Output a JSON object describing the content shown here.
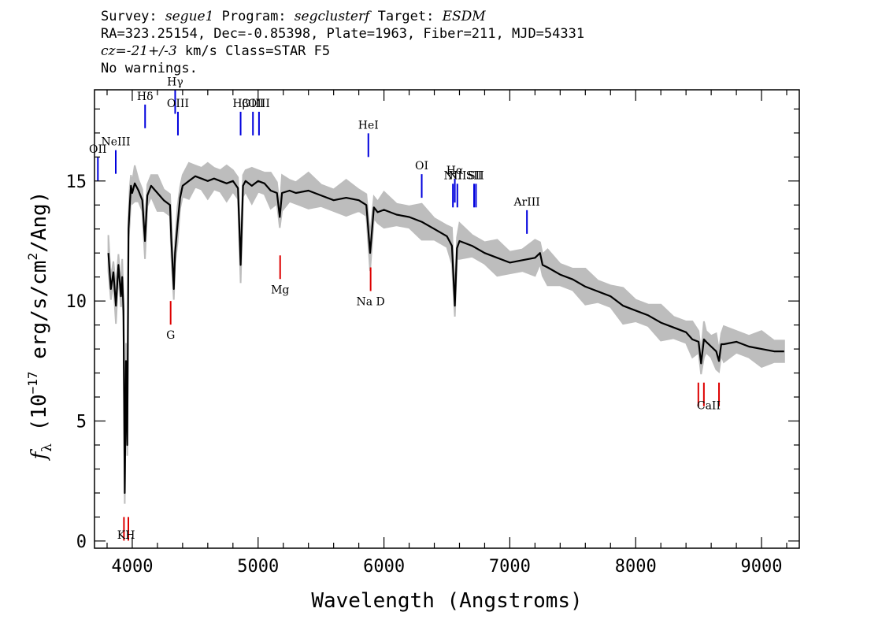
{
  "header": {
    "survey_label": "Survey:",
    "survey": "segue1",
    "program_label": "Program:",
    "program": "segclusterf",
    "target_label": "Target:",
    "target": "ESDM",
    "line2": "RA=323.25154, Dec=-0.85398, Plate=1963, Fiber=211, MJD=54331",
    "cz_label": "cz=",
    "cz_value": "-21+/-3",
    "cz_rest": " km/s Class=STAR F5",
    "warnings": "No warnings."
  },
  "chart_data": {
    "type": "line",
    "title": "",
    "xlabel": "Wavelength (Angstroms)",
    "ylabel": "f_λ (10^-17 erg/s/cm^2/Ang)",
    "ylabel_parts": {
      "f": "f",
      "sub": "λ",
      "pre": " (10",
      "exp": "−17",
      "mid": " erg/s/cm",
      "exp2": "2",
      "post": "/Ang)"
    },
    "xlim": [
      3700,
      9300
    ],
    "ylim": [
      -0.3,
      18.8
    ],
    "xticks": [
      4000,
      5000,
      6000,
      7000,
      8000,
      9000
    ],
    "yticks": [
      0,
      5,
      10,
      15
    ],
    "colors": {
      "spectrum": "#000000",
      "error_band": "#bdbdbd",
      "emission": "#0000dd",
      "absorption": "#dd0000"
    },
    "series": [
      {
        "x": [
          3810,
          3830,
          3850,
          3870,
          3890,
          3910,
          3920,
          3930,
          3940,
          3950,
          3960,
          3970,
          3980,
          3990,
          4000,
          4020,
          4050,
          4080,
          4101,
          4120,
          4150,
          4200,
          4250,
          4300,
          4310,
          4330,
          4340,
          4360,
          4380,
          4400,
          4450,
          4500,
          4550,
          4600,
          4650,
          4700,
          4750,
          4800,
          4840,
          4861,
          4880,
          4900,
          4950,
          5000,
          5050,
          5100,
          5150,
          5172,
          5190,
          5250,
          5300,
          5400,
          5500,
          5600,
          5700,
          5800,
          5860,
          5890,
          5920,
          5950,
          6000,
          6100,
          6200,
          6300,
          6400,
          6500,
          6540,
          6563,
          6580,
          6600,
          6700,
          6800,
          6900,
          7000,
          7100,
          7200,
          7240,
          7260,
          7300,
          7400,
          7500,
          7600,
          7700,
          7800,
          7900,
          8000,
          8100,
          8200,
          8300,
          8400,
          8450,
          8500,
          8520,
          8542,
          8560,
          8600,
          8640,
          8662,
          8680,
          8700,
          8800,
          8900,
          9000,
          9100,
          9180
        ],
        "y": [
          12.0,
          10.5,
          11.2,
          9.8,
          11.5,
          10.2,
          11.0,
          9.6,
          2.0,
          7.5,
          4.0,
          13.0,
          14.0,
          14.8,
          14.5,
          14.9,
          14.6,
          14.2,
          12.5,
          14.4,
          14.8,
          14.5,
          14.2,
          14.0,
          12.6,
          10.5,
          12.0,
          13.2,
          14.3,
          14.8,
          15.0,
          15.2,
          15.1,
          15.0,
          15.1,
          15.0,
          14.9,
          15.0,
          14.7,
          11.5,
          14.8,
          15.0,
          14.8,
          15.0,
          14.9,
          14.6,
          14.5,
          13.5,
          14.5,
          14.6,
          14.5,
          14.6,
          14.4,
          14.2,
          14.3,
          14.2,
          14.0,
          12.0,
          13.9,
          13.7,
          13.8,
          13.6,
          13.5,
          13.3,
          13.0,
          12.7,
          12.3,
          9.8,
          12.2,
          12.5,
          12.3,
          12.0,
          11.8,
          11.6,
          11.7,
          11.8,
          12.0,
          11.5,
          11.4,
          11.1,
          10.9,
          10.6,
          10.4,
          10.2,
          9.8,
          9.6,
          9.4,
          9.1,
          8.9,
          8.7,
          8.4,
          8.3,
          7.4,
          8.4,
          8.3,
          8.1,
          7.9,
          7.5,
          8.2,
          8.2,
          8.3,
          8.1,
          8.0,
          7.9,
          7.9
        ]
      }
    ],
    "emission_lines": [
      {
        "label": "OII",
        "x": 3727,
        "y": 15.0
      },
      {
        "label": "NeIII",
        "x": 3869,
        "y": 15.3
      },
      {
        "label": "Hδ",
        "x": 4102,
        "y": 17.2
      },
      {
        "label": "Hγ",
        "x": 4341,
        "y": 17.8
      },
      {
        "label": "OIII",
        "x": 4363,
        "y": 16.9
      },
      {
        "label": "Hβ",
        "x": 4861,
        "y": 16.9
      },
      {
        "label": "OIII",
        "x": 4959,
        "y": 16.9
      },
      {
        "label": "OIII",
        "x": 5007,
        "y": 16.9
      },
      {
        "label": "HeI",
        "x": 5876,
        "y": 16.0
      },
      {
        "label": "OI",
        "x": 6300,
        "y": 14.3
      },
      {
        "label": "NII",
        "x": 6548,
        "y": 13.9
      },
      {
        "label": "Hα",
        "x": 6563,
        "y": 14.1
      },
      {
        "label": "NII",
        "x": 6583,
        "y": 13.9
      },
      {
        "label": "SII",
        "x": 6716,
        "y": 13.9
      },
      {
        "label": "SII",
        "x": 6731,
        "y": 13.9
      },
      {
        "label": "ArIII",
        "x": 7136,
        "y": 12.8
      }
    ],
    "absorption_lines": [
      {
        "label": "K",
        "x": 3934,
        "y": 1.0
      },
      {
        "label": "H",
        "x": 3969,
        "y": 1.0
      },
      {
        "label": "G",
        "x": 4305,
        "y": 10.0
      },
      {
        "label": "Mg",
        "x": 5175,
        "y": 11.9
      },
      {
        "label": "Na D",
        "x": 5894,
        "y": 11.4
      },
      {
        "label": "CaII",
        "x": 8498,
        "y": 6.6
      },
      {
        "label": "CaII",
        "x": 8542,
        "y": 6.6
      },
      {
        "label": "CaII",
        "x": 8662,
        "y": 6.6
      }
    ],
    "absorption_group_labels": [
      {
        "label": "KH",
        "x": 3951,
        "y": 0.1
      },
      {
        "label": "CaII",
        "x": 8580,
        "y": 5.5
      }
    ]
  }
}
